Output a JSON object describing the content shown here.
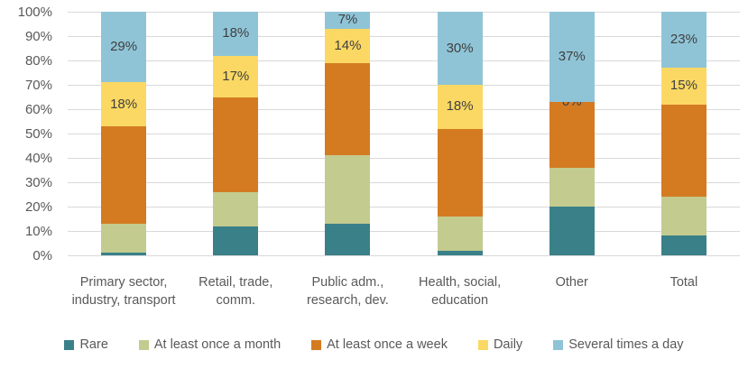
{
  "chart_data": {
    "type": "bar",
    "subtype": "stacked-100-percent",
    "title": "",
    "xlabel": "",
    "ylabel": "",
    "ylim": [
      0,
      100
    ],
    "grid": true,
    "legend_position": "bottom",
    "y_ticks": [
      "0%",
      "10%",
      "20%",
      "30%",
      "40%",
      "50%",
      "60%",
      "70%",
      "80%",
      "90%",
      "100%"
    ],
    "categories": [
      "Primary sector, industry, transport",
      "Retail, trade, comm.",
      "Public adm., research, dev.",
      "Health, social, education",
      "Other",
      "Total"
    ],
    "series": [
      {
        "name": "Rare",
        "color": "#3A8089",
        "values": [
          1,
          12,
          13,
          2,
          20,
          8
        ],
        "show_labels": false
      },
      {
        "name": "At least once a month",
        "color": "#C3CB8F",
        "values": [
          12,
          14,
          28,
          14,
          16,
          16
        ],
        "show_labels": false
      },
      {
        "name": "At least once a week",
        "color": "#D47B22",
        "values": [
          40,
          39,
          38,
          36,
          27,
          38
        ],
        "show_labels": false
      },
      {
        "name": "Daily",
        "color": "#FBD863",
        "values": [
          18,
          17,
          14,
          18,
          0,
          15
        ],
        "show_labels": true
      },
      {
        "name": "Several times a day",
        "color": "#8FC4D7",
        "values": [
          29,
          18,
          7,
          30,
          37,
          23
        ],
        "show_labels": true
      }
    ],
    "data_label_format": "percent"
  },
  "colors": {
    "background": "#FFFFFF",
    "grid": "#D9D9D9",
    "axis_text": "#595959",
    "data_label_text": "#404040",
    "legend_text": "#595959"
  }
}
